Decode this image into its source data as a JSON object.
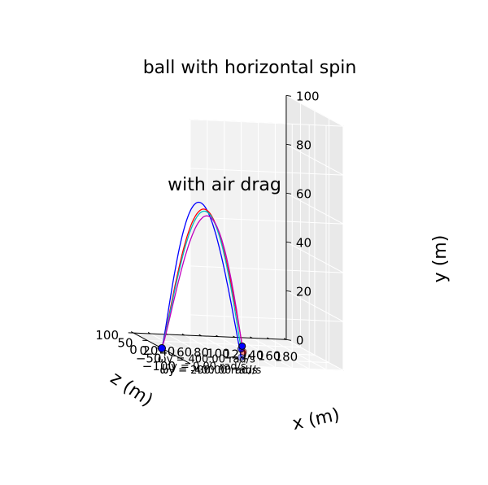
{
  "chart_data": {
    "type": "line",
    "projection": "3d",
    "title": "ball with horizontal spin",
    "annotation": "with air drag",
    "xlabel": "x (m)",
    "ylabel": "y (m)",
    "zlabel": "z (m)",
    "xlim": [
      0,
      180
    ],
    "ylim": [
      0,
      100
    ],
    "zlim": [
      -100,
      100
    ],
    "x_ticks": [
      "0",
      "20",
      "40",
      "60",
      "80",
      "100",
      "120",
      "140",
      "160",
      "180"
    ],
    "y_ticks": [
      "0",
      "20",
      "40",
      "60",
      "80",
      "100"
    ],
    "z_ticks": [
      "−100",
      "−50",
      "0",
      "50",
      "100"
    ],
    "grid": true,
    "start_point": {
      "x": 0,
      "y": 0,
      "z": 0
    },
    "series": [
      {
        "name": "ωy = -400.00 rad/s",
        "color": "#0000ff",
        "peak_y": 57,
        "landing_x": 80,
        "landing_z": -40
      },
      {
        "name": "ωy = 0.00 rad/s",
        "color": "#ff0000",
        "peak_y": 54,
        "landing_x": 96,
        "landing_z": 0
      },
      {
        "name": "ωy = 200.00 rad/s",
        "color": "#00bfbf",
        "peak_y": 53,
        "landing_x": 100,
        "landing_z": 20
      },
      {
        "name": "ωy = 400.00 rad/s",
        "color": "#bf00bf",
        "peak_y": 51,
        "landing_x": 108,
        "landing_z": 40
      }
    ],
    "end_markers": [
      {
        "x": 80,
        "z": -40,
        "color": "#0000ff",
        "alpha": 0.35
      },
      {
        "x": 96,
        "z": 0,
        "color": "#ff0000",
        "alpha": 0.4
      },
      {
        "x": 100,
        "z": 20,
        "color": "#0000ff",
        "alpha": 0.6
      },
      {
        "x": 108,
        "z": 40,
        "color": "#0000ff",
        "alpha": 1.0
      }
    ]
  }
}
